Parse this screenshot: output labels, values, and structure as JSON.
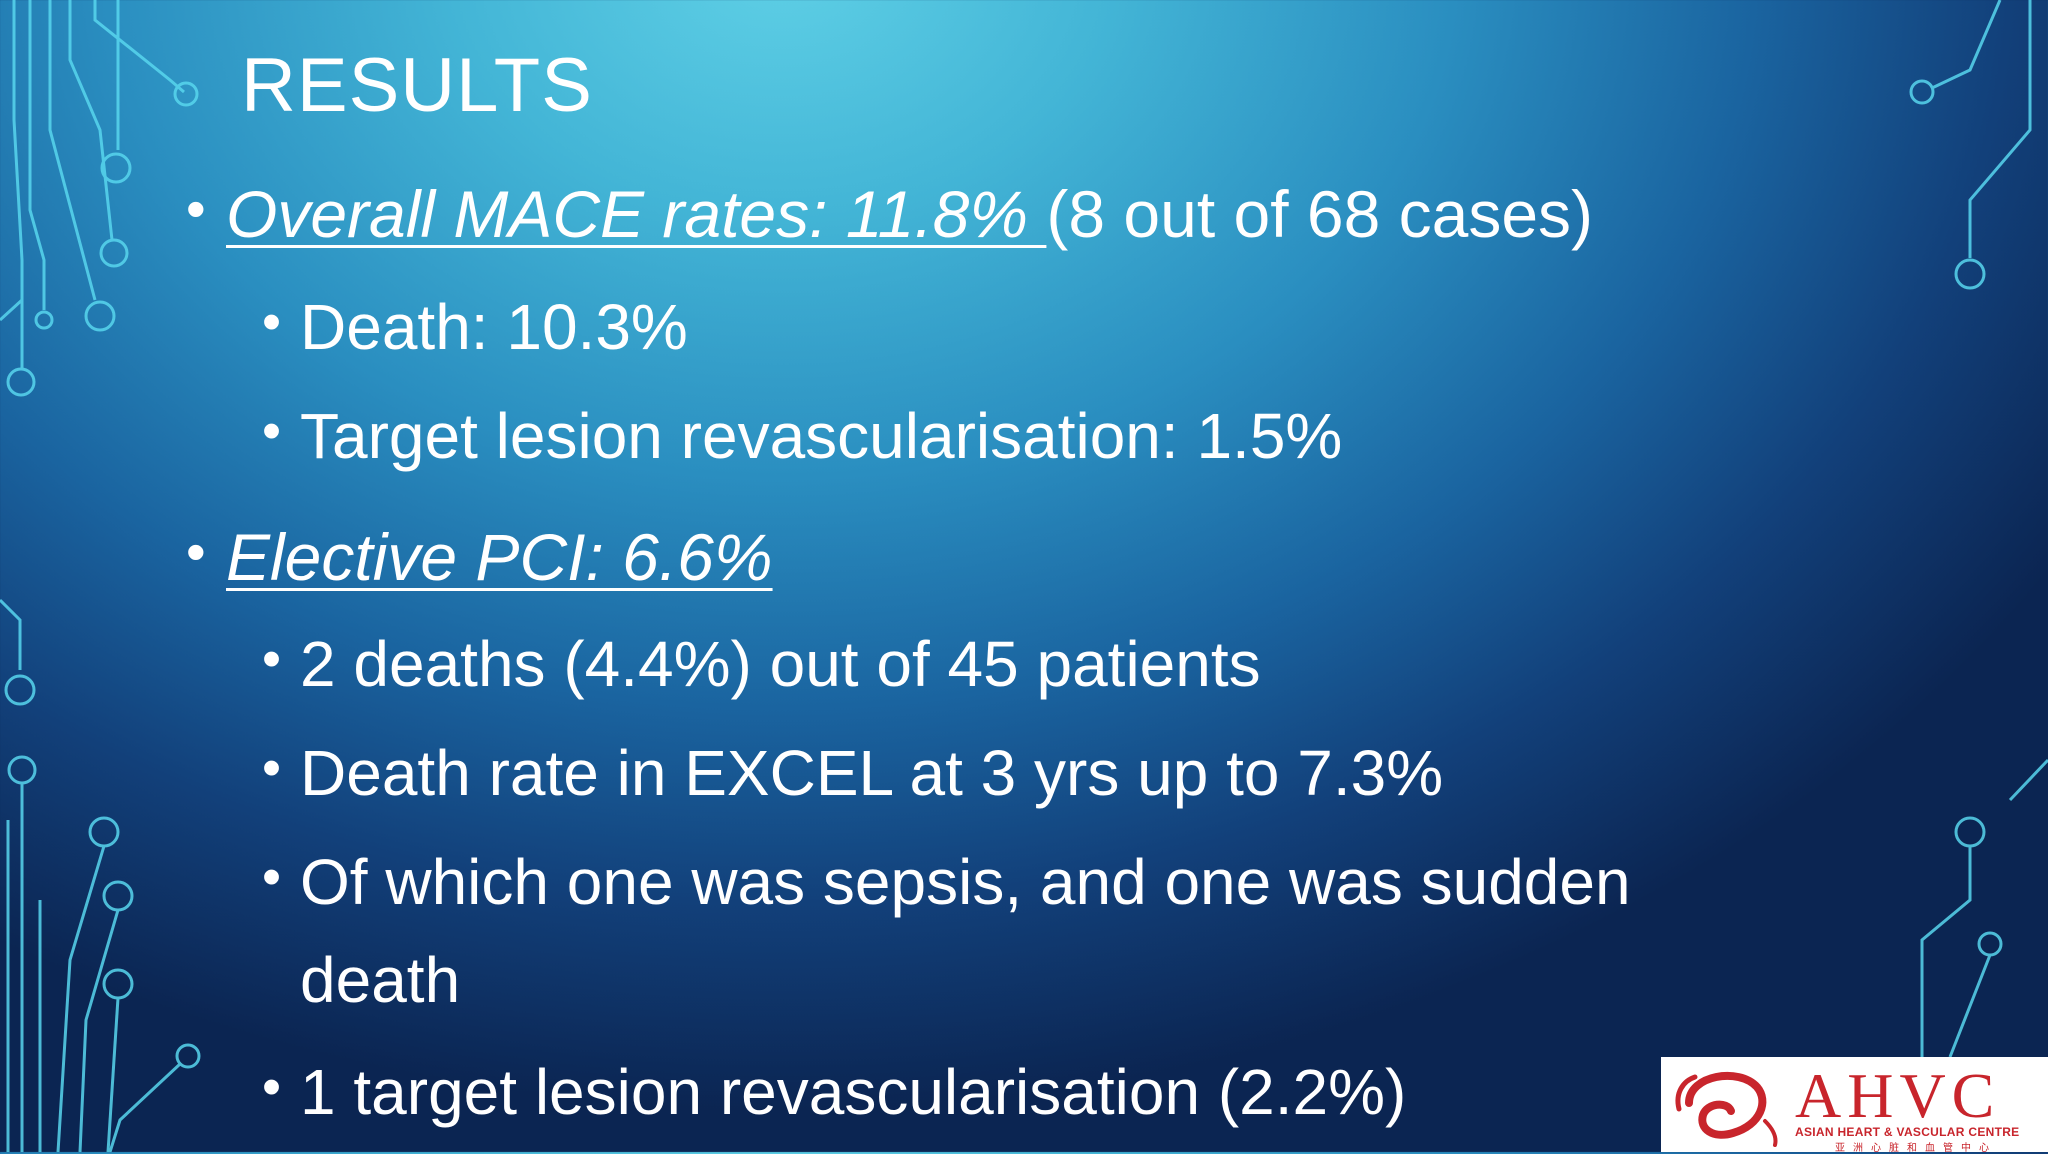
{
  "slide": {
    "title": "RESULTS",
    "bullets": [
      {
        "emphasis": "Overall MACE rates: 11.8% ",
        "rest": "(8 out of 68 cases)"
      },
      {
        "text": "Death: 10.3%"
      },
      {
        "text": "Target lesion revascularisation: 1.5%"
      },
      {
        "emphasis": "Elective PCI: 6.6%"
      },
      {
        "text": "2 deaths (4.4%) out of 45 patients"
      },
      {
        "text": "Death rate in EXCEL at 3 yrs up to 7.3%"
      },
      {
        "text": "Of which one was sepsis, and one was sudden",
        "text2": "death"
      },
      {
        "text": "1 target lesion revascularisation (2.2%)"
      }
    ],
    "bullet_glyph": "•"
  },
  "logo": {
    "name": "AHVC",
    "subtitle": "ASIAN HEART & VASCULAR CENTRE",
    "subtitle_cn": "亚洲心脏和血管中心",
    "color": "#c8252c"
  },
  "colors": {
    "text": "#ffffff",
    "circuit_lines": "#5ad8f0"
  }
}
